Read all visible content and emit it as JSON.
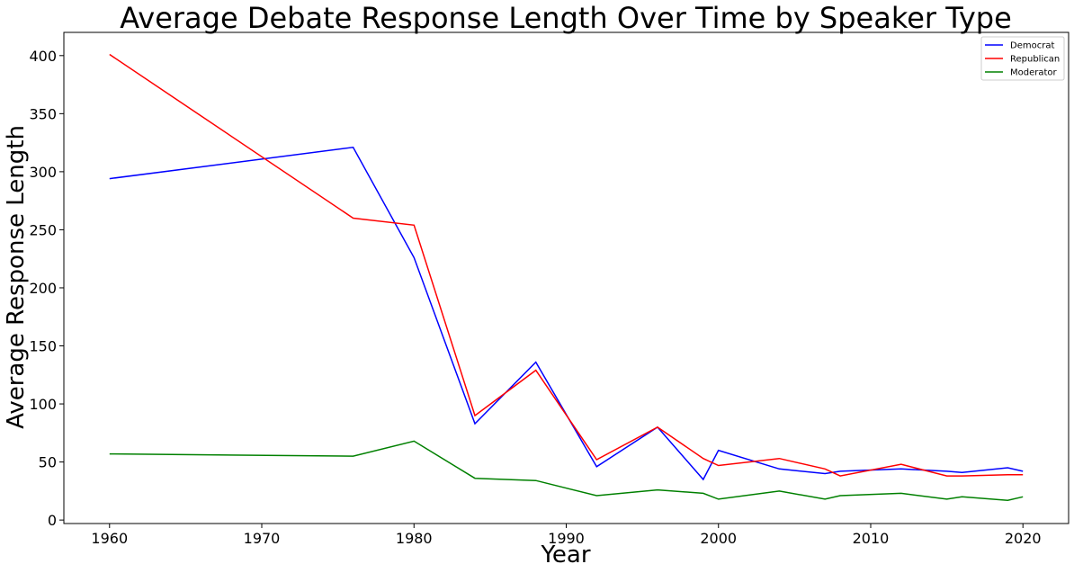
{
  "chart_data": {
    "type": "line",
    "title": "Average Debate Response Length Over Time by Speaker Type",
    "xlabel": "Year",
    "ylabel": "Average Response Length",
    "xlim": [
      1957,
      2023
    ],
    "ylim": [
      -3,
      420
    ],
    "xticks": [
      1960,
      1970,
      1980,
      1990,
      2000,
      2010,
      2020
    ],
    "yticks": [
      0,
      50,
      100,
      150,
      200,
      250,
      300,
      350,
      400
    ],
    "grid": false,
    "legend_position": "top-right",
    "series": [
      {
        "name": "Democrat",
        "color": "#0000ff",
        "points": [
          [
            1960,
            294
          ],
          [
            1976,
            321
          ],
          [
            1980,
            226
          ],
          [
            1984,
            83
          ],
          [
            1988,
            136
          ],
          [
            1992,
            46
          ],
          [
            1996,
            80
          ],
          [
            1999,
            35
          ],
          [
            2000,
            60
          ],
          [
            2004,
            44
          ],
          [
            2007,
            40
          ],
          [
            2008,
            42
          ],
          [
            2012,
            44
          ],
          [
            2015,
            42
          ],
          [
            2016,
            41
          ],
          [
            2019,
            45
          ],
          [
            2020,
            42
          ]
        ]
      },
      {
        "name": "Republican",
        "color": "#ff0000",
        "points": [
          [
            1960,
            401
          ],
          [
            1976,
            260
          ],
          [
            1980,
            254
          ],
          [
            1984,
            90
          ],
          [
            1988,
            129
          ],
          [
            1992,
            52
          ],
          [
            1996,
            80
          ],
          [
            1999,
            53
          ],
          [
            2000,
            47
          ],
          [
            2004,
            53
          ],
          [
            2007,
            44
          ],
          [
            2008,
            38
          ],
          [
            2012,
            48
          ],
          [
            2015,
            38
          ],
          [
            2016,
            38
          ],
          [
            2019,
            39
          ],
          [
            2020,
            39
          ]
        ]
      },
      {
        "name": "Moderator",
        "color": "#008000",
        "points": [
          [
            1960,
            57
          ],
          [
            1976,
            55
          ],
          [
            1980,
            68
          ],
          [
            1984,
            36
          ],
          [
            1988,
            34
          ],
          [
            1992,
            21
          ],
          [
            1996,
            26
          ],
          [
            1999,
            23
          ],
          [
            2000,
            18
          ],
          [
            2004,
            25
          ],
          [
            2007,
            18
          ],
          [
            2008,
            21
          ],
          [
            2012,
            23
          ],
          [
            2015,
            18
          ],
          [
            2016,
            20
          ],
          [
            2019,
            17
          ],
          [
            2020,
            20
          ]
        ]
      }
    ]
  }
}
